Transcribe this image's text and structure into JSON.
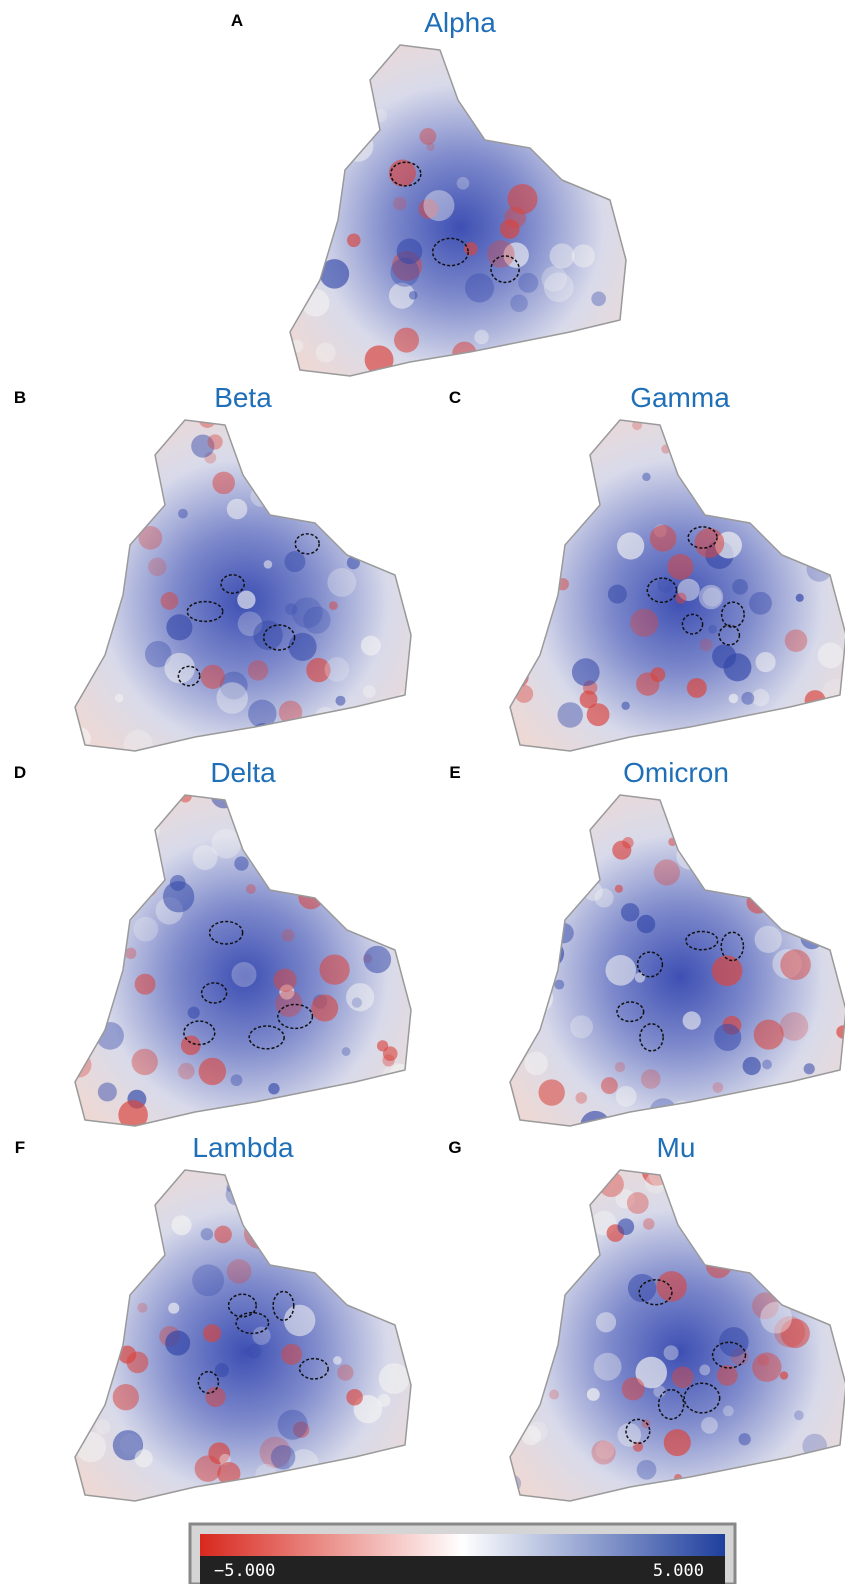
{
  "panels": [
    {
      "label": "A",
      "title": "Alpha"
    },
    {
      "label": "B",
      "title": "Beta"
    },
    {
      "label": "C",
      "title": "Gamma"
    },
    {
      "label": "D",
      "title": "Delta"
    },
    {
      "label": "E",
      "title": "Omicron"
    },
    {
      "label": "F",
      "title": "Lambda"
    },
    {
      "label": "G",
      "title": "Mu"
    }
  ],
  "colorbar": {
    "labels": [
      "−5.000",
      "5.000"
    ]
  }
}
